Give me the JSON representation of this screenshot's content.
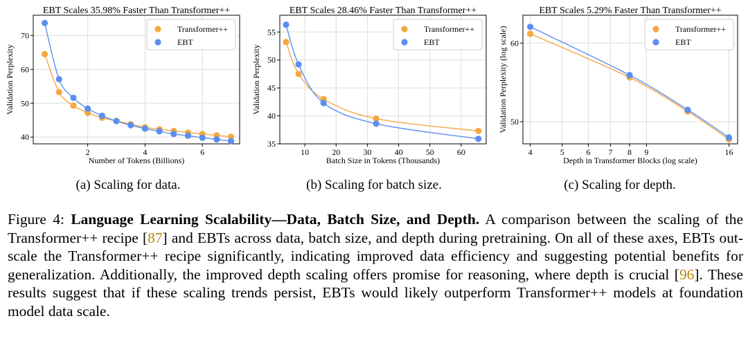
{
  "figure": {
    "subcaptions": [
      "(a) Scaling for data.",
      "(b) Scaling for batch size.",
      "(c) Scaling for depth."
    ],
    "caption": {
      "label": "Figure 4: ",
      "bold": "Language Learning Scalability—Data, Batch Size, and Depth.",
      "text1": " A comparison between the scaling of the Transformer++ recipe [",
      "ref1": "87",
      "text2": "] and EBTs across data, batch size, and depth during pretraining. On all of these axes, EBTs out-scale the Transformer++ recipe significantly, indicating improved data efficiency and suggesting potential benefits for generalization. Additionally, the improved depth scaling offers promise for reasoning, where depth is crucial [",
      "ref2": "96",
      "text3": "]. These results suggest that if these scaling trends persist, EBTs would likely outperform Transformer++ models at foundation model data scale."
    }
  },
  "colors": {
    "transformer": "#f5a742",
    "ebt": "#5b8ff0"
  },
  "chart_data": [
    {
      "type": "scatter",
      "title": "EBT Scales 35.98% Faster Than Transformer++",
      "xlabel": "Number of Tokens (Billions)",
      "ylabel": "Validation Perplexity",
      "xlim": [
        0.1,
        7.3
      ],
      "ylim": [
        38,
        76
      ],
      "xticks": [
        2,
        4,
        6
      ],
      "yticks": [
        40,
        50,
        60,
        70
      ],
      "log": false,
      "grid": true,
      "legend": "top-right",
      "series": [
        {
          "name": "Transformer++",
          "x": [
            0.5,
            1,
            1.5,
            2,
            2.5,
            3,
            3.5,
            4,
            4.5,
            5,
            5.5,
            6,
            6.5,
            7
          ],
          "values": [
            64.5,
            53.3,
            49.3,
            47.2,
            45.7,
            44.8,
            43.8,
            42.9,
            42.3,
            41.8,
            41.3,
            40.9,
            40.5,
            40.1
          ]
        },
        {
          "name": "EBT",
          "x": [
            0.5,
            1,
            1.5,
            2,
            2.5,
            3,
            3.5,
            4,
            4.5,
            5,
            5.5,
            6,
            6.5,
            7
          ],
          "values": [
            73.7,
            57.1,
            51.6,
            48.4,
            46.3,
            44.7,
            43.5,
            42.5,
            41.7,
            40.9,
            40.4,
            39.8,
            39.3,
            38.8
          ]
        }
      ]
    },
    {
      "type": "scatter",
      "title": "EBT Scales 28.46% Faster Than Transformer++",
      "xlabel": "Batch Size in Tokens (Thousands)",
      "ylabel": "Validation Perplexity",
      "xlim": [
        2,
        68
      ],
      "ylim": [
        35,
        58
      ],
      "xticks": [
        10,
        20,
        30,
        40,
        50,
        60
      ],
      "yticks": [
        35,
        40,
        45,
        50,
        55
      ],
      "log": false,
      "grid": true,
      "legend": "top-right",
      "series": [
        {
          "name": "Transformer++",
          "x": [
            4,
            8,
            16,
            32.8,
            65.5
          ],
          "values": [
            53.2,
            47.5,
            43.0,
            39.5,
            37.3
          ]
        },
        {
          "name": "EBT",
          "x": [
            4,
            8,
            16,
            32.8,
            65.5
          ],
          "values": [
            56.3,
            49.2,
            42.3,
            38.6,
            35.9
          ]
        }
      ]
    },
    {
      "type": "scatter",
      "title": "EBT Scales 5.29% Faster Than Transformer++",
      "xlabel": "Depth in Transformer Blocks (log scale)",
      "ylabel": "Validation Perplexity (log scale)",
      "xlim": [
        3.8,
        17
      ],
      "ylim": [
        47.5,
        64
      ],
      "xticks": [
        4,
        5,
        6,
        7,
        8,
        9,
        16
      ],
      "yticks": [
        50,
        60
      ],
      "log": true,
      "grid": true,
      "legend": "top-right",
      "series": [
        {
          "name": "Transformer++",
          "x": [
            4,
            8,
            12,
            16
          ],
          "values": [
            61.3,
            55.4,
            51.2,
            48.0
          ]
        },
        {
          "name": "EBT",
          "x": [
            4,
            8,
            12,
            16
          ],
          "values": [
            62.3,
            55.7,
            51.4,
            48.2
          ]
        }
      ]
    }
  ]
}
